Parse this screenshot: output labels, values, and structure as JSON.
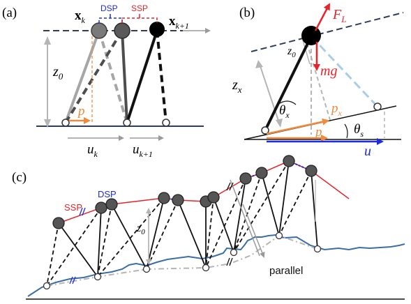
{
  "panel_a": {
    "tag": "(a)",
    "x_k_base": "x",
    "x_k_sub": "k",
    "x_k1_base": "x",
    "x_k1_sub": "k+1",
    "dsp": "DSP",
    "ssp": "SSP",
    "z0_base": "z",
    "z0_sub": "0",
    "p": "p",
    "u_k_base": "u",
    "u_k_sub": "k",
    "u_k1_base": "u",
    "u_k1_sub": "k+1"
  },
  "panel_b": {
    "tag": "(b)",
    "FL_base": "F",
    "FL_sub": "L",
    "z0_base": "z",
    "z0_sub": "0",
    "mg": "mg",
    "zx_base": "z",
    "zx_sub": "x",
    "px_base": "p",
    "px_sub": "x",
    "thx_base": "θ",
    "thx_sub": "x",
    "ths_base": "θ",
    "ths_sub": "s",
    "p": "p",
    "u": "u"
  },
  "panel_c": {
    "tag": "(c)",
    "ssp": "SSP",
    "dsp": "DSP",
    "z0_base": "z",
    "z0_sub": "0",
    "parallel": "parallel"
  },
  "colors": {
    "red": "#e8242b",
    "blue": "#1f2be0",
    "orange": "#f08a3c",
    "lightblue": "#a9cde8",
    "terrain": "#3a6ea5",
    "dashgray": "#b5b5b5",
    "navy": "#2f3d5a"
  }
}
